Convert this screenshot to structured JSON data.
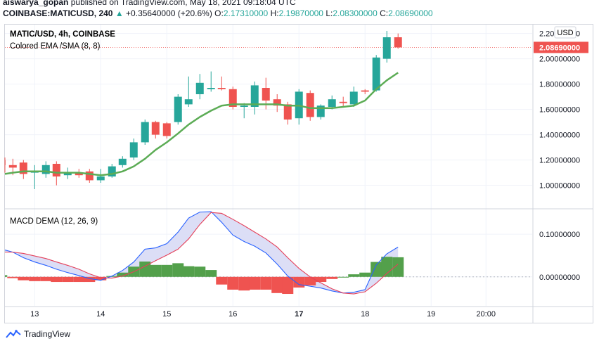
{
  "header": {
    "author": "aiswarya_gopan",
    "published_text": "published on TradingView.com, May 18, 2021 09:18:04 UTC",
    "symbol": "COINBASE:MATICUSD, 240",
    "change_arrow": "▲",
    "change": "+0.35640000 (+20.6%)",
    "open_label": "O:",
    "open": "2.17310000",
    "high_label": "H:",
    "high": "2.19870000",
    "low_label": "L:",
    "low": "2.08300000",
    "close_label": "C:",
    "close": "2.08690000"
  },
  "price_pane": {
    "title": "MATIC/USD, 4h, COINBASE",
    "indicator": "Colored EMA /SMA (8, 8)",
    "currency": "USD",
    "last_price_label": "2.08690000",
    "y_ticks": [
      "2.20000000",
      "2.00000000",
      "1.80000000",
      "1.60000000",
      "1.40000000",
      "1.20000000",
      "1.00000000"
    ]
  },
  "macd_pane": {
    "title": "MACD DEMA (12, 26, 9)",
    "y_ticks": [
      "0.10000000",
      "0.00000000"
    ]
  },
  "x_axis": {
    "ticks": [
      "13",
      "14",
      "15",
      "16",
      "17",
      "18",
      "19",
      "20:00"
    ]
  },
  "footer": {
    "brand": "TradingView"
  },
  "colors": {
    "up": "#26a69a",
    "down": "#ef5350",
    "ema": "#5cac55",
    "macd": "#2962ff",
    "signal": "#e5415a",
    "fill": "#d6d8f5",
    "hist_up": "#53a04b",
    "hist_down": "#ef5350",
    "last_price": "#ef5350"
  },
  "chart_data": [
    {
      "type": "candlestick",
      "title": "MATIC/USD, 4h, COINBASE",
      "interval": "4h",
      "ylim": [
        0.82,
        2.27
      ],
      "x_range_days": [
        12.55,
        20.53
      ],
      "candles": [
        {
          "t": 12.5,
          "o": 1.2,
          "h": 1.22,
          "l": 1.1,
          "c": 1.16
        },
        {
          "t": 12.67,
          "o": 1.16,
          "h": 1.21,
          "l": 1.08,
          "c": 1.14
        },
        {
          "t": 12.83,
          "o": 1.18,
          "h": 1.2,
          "l": 1.05,
          "c": 1.09
        },
        {
          "t": 13.0,
          "o": 1.1,
          "h": 1.16,
          "l": 0.97,
          "c": 1.11
        },
        {
          "t": 13.17,
          "o": 1.09,
          "h": 1.19,
          "l": 1.06,
          "c": 1.16
        },
        {
          "t": 13.33,
          "o": 1.17,
          "h": 1.19,
          "l": 1.0,
          "c": 1.07
        },
        {
          "t": 13.5,
          "o": 1.08,
          "h": 1.14,
          "l": 1.05,
          "c": 1.1
        },
        {
          "t": 13.67,
          "o": 1.1,
          "h": 1.13,
          "l": 1.06,
          "c": 1.08
        },
        {
          "t": 13.83,
          "o": 1.11,
          "h": 1.13,
          "l": 1.02,
          "c": 1.04
        },
        {
          "t": 14.0,
          "o": 1.04,
          "h": 1.13,
          "l": 1.02,
          "c": 1.07
        },
        {
          "t": 14.17,
          "o": 1.07,
          "h": 1.17,
          "l": 1.06,
          "c": 1.15
        },
        {
          "t": 14.33,
          "o": 1.16,
          "h": 1.23,
          "l": 1.14,
          "c": 1.21
        },
        {
          "t": 14.5,
          "o": 1.22,
          "h": 1.37,
          "l": 1.2,
          "c": 1.34
        },
        {
          "t": 14.67,
          "o": 1.34,
          "h": 1.52,
          "l": 1.32,
          "c": 1.5
        },
        {
          "t": 14.83,
          "o": 1.5,
          "h": 1.51,
          "l": 1.37,
          "c": 1.4
        },
        {
          "t": 15.0,
          "o": 1.49,
          "h": 1.5,
          "l": 1.37,
          "c": 1.39
        },
        {
          "t": 15.17,
          "o": 1.5,
          "h": 1.72,
          "l": 1.48,
          "c": 1.7
        },
        {
          "t": 15.33,
          "o": 1.64,
          "h": 1.86,
          "l": 1.62,
          "c": 1.68
        },
        {
          "t": 15.5,
          "o": 1.72,
          "h": 1.88,
          "l": 1.68,
          "c": 1.81
        },
        {
          "t": 15.67,
          "o": 1.76,
          "h": 1.9,
          "l": 1.74,
          "c": 1.77
        },
        {
          "t": 15.83,
          "o": 1.77,
          "h": 1.86,
          "l": 1.75,
          "c": 1.76
        },
        {
          "t": 16.0,
          "o": 1.76,
          "h": 1.78,
          "l": 1.6,
          "c": 1.62
        },
        {
          "t": 16.17,
          "o": 1.62,
          "h": 1.65,
          "l": 1.53,
          "c": 1.63
        },
        {
          "t": 16.33,
          "o": 1.62,
          "h": 1.82,
          "l": 1.56,
          "c": 1.79
        },
        {
          "t": 16.5,
          "o": 1.77,
          "h": 1.85,
          "l": 1.6,
          "c": 1.67
        },
        {
          "t": 16.67,
          "o": 1.68,
          "h": 1.72,
          "l": 1.58,
          "c": 1.63
        },
        {
          "t": 16.83,
          "o": 1.64,
          "h": 1.66,
          "l": 1.48,
          "c": 1.52
        },
        {
          "t": 17.0,
          "o": 1.53,
          "h": 1.76,
          "l": 1.48,
          "c": 1.74
        },
        {
          "t": 17.17,
          "o": 1.73,
          "h": 1.75,
          "l": 1.51,
          "c": 1.54
        },
        {
          "t": 17.33,
          "o": 1.54,
          "h": 1.64,
          "l": 1.52,
          "c": 1.63
        },
        {
          "t": 17.5,
          "o": 1.62,
          "h": 1.71,
          "l": 1.6,
          "c": 1.68
        },
        {
          "t": 17.67,
          "o": 1.66,
          "h": 1.7,
          "l": 1.62,
          "c": 1.65
        },
        {
          "t": 17.83,
          "o": 1.64,
          "h": 1.78,
          "l": 1.62,
          "c": 1.74
        },
        {
          "t": 18.0,
          "o": 1.75,
          "h": 1.76,
          "l": 1.72,
          "c": 1.74
        },
        {
          "t": 18.17,
          "o": 1.75,
          "h": 2.03,
          "l": 1.74,
          "c": 2.01
        },
        {
          "t": 18.33,
          "o": 2.0,
          "h": 2.22,
          "l": 1.97,
          "c": 2.17
        },
        {
          "t": 18.5,
          "o": 2.17,
          "h": 2.2,
          "l": 2.08,
          "c": 2.09
        }
      ],
      "ema": [
        [
          12.5,
          1.09
        ],
        [
          12.67,
          1.1
        ],
        [
          12.83,
          1.11
        ],
        [
          13.0,
          1.11
        ],
        [
          13.17,
          1.11
        ],
        [
          13.33,
          1.1
        ],
        [
          13.5,
          1.1
        ],
        [
          13.67,
          1.1
        ],
        [
          13.83,
          1.09
        ],
        [
          14.0,
          1.08
        ],
        [
          14.17,
          1.09
        ],
        [
          14.33,
          1.11
        ],
        [
          14.5,
          1.15
        ],
        [
          14.67,
          1.21
        ],
        [
          14.83,
          1.28
        ],
        [
          15.0,
          1.34
        ],
        [
          15.17,
          1.41
        ],
        [
          15.33,
          1.48
        ],
        [
          15.5,
          1.54
        ],
        [
          15.67,
          1.59
        ],
        [
          15.83,
          1.63
        ],
        [
          16.0,
          1.64
        ],
        [
          16.17,
          1.64
        ],
        [
          16.33,
          1.64
        ],
        [
          16.5,
          1.64
        ],
        [
          16.67,
          1.64
        ],
        [
          16.83,
          1.63
        ],
        [
          17.0,
          1.63
        ],
        [
          17.17,
          1.61
        ],
        [
          17.33,
          1.61
        ],
        [
          17.5,
          1.61
        ],
        [
          17.67,
          1.62
        ],
        [
          17.83,
          1.63
        ],
        [
          18.0,
          1.67
        ],
        [
          18.17,
          1.76
        ],
        [
          18.33,
          1.83
        ],
        [
          18.5,
          1.89
        ]
      ]
    },
    {
      "type": "macd",
      "title": "MACD DEMA (12, 26, 9)",
      "ylim": [
        -0.068,
        0.158
      ],
      "macd": [
        [
          12.5,
          0.063
        ],
        [
          12.67,
          0.058
        ],
        [
          12.83,
          0.045
        ],
        [
          13.0,
          0.035
        ],
        [
          13.17,
          0.027
        ],
        [
          13.33,
          0.018
        ],
        [
          13.5,
          0.01
        ],
        [
          13.67,
          0.003
        ],
        [
          13.83,
          -0.004
        ],
        [
          14.0,
          -0.008
        ],
        [
          14.17,
          0.002
        ],
        [
          14.33,
          0.015
        ],
        [
          14.5,
          0.035
        ],
        [
          14.67,
          0.065
        ],
        [
          14.83,
          0.068
        ],
        [
          15.0,
          0.078
        ],
        [
          15.17,
          0.105
        ],
        [
          15.33,
          0.138
        ],
        [
          15.5,
          0.152
        ],
        [
          15.67,
          0.153
        ],
        [
          15.83,
          0.128
        ],
        [
          16.0,
          0.098
        ],
        [
          16.17,
          0.083
        ],
        [
          16.33,
          0.072
        ],
        [
          16.5,
          0.056
        ],
        [
          16.67,
          0.03
        ],
        [
          16.83,
          0.002
        ],
        [
          17.0,
          -0.018
        ],
        [
          17.17,
          -0.022
        ],
        [
          17.33,
          -0.026
        ],
        [
          17.5,
          -0.033
        ],
        [
          17.67,
          -0.038
        ],
        [
          17.83,
          -0.036
        ],
        [
          18.0,
          -0.03
        ],
        [
          18.17,
          0.028
        ],
        [
          18.33,
          0.054
        ],
        [
          18.5,
          0.07
        ]
      ],
      "signal": [
        [
          12.5,
          0.058
        ],
        [
          12.67,
          0.058
        ],
        [
          12.83,
          0.055
        ],
        [
          13.0,
          0.049
        ],
        [
          13.17,
          0.043
        ],
        [
          13.33,
          0.035
        ],
        [
          13.5,
          0.027
        ],
        [
          13.67,
          0.018
        ],
        [
          13.83,
          0.007
        ],
        [
          14.0,
          -0.002
        ],
        [
          14.17,
          -0.003
        ],
        [
          14.33,
          0.002
        ],
        [
          14.5,
          0.012
        ],
        [
          14.67,
          0.025
        ],
        [
          14.83,
          0.038
        ],
        [
          15.0,
          0.051
        ],
        [
          15.17,
          0.065
        ],
        [
          15.33,
          0.089
        ],
        [
          15.5,
          0.123
        ],
        [
          15.67,
          0.151
        ],
        [
          15.83,
          0.149
        ],
        [
          16.0,
          0.135
        ],
        [
          16.17,
          0.12
        ],
        [
          16.33,
          0.105
        ],
        [
          16.5,
          0.089
        ],
        [
          16.67,
          0.07
        ],
        [
          16.83,
          0.045
        ],
        [
          17.0,
          0.02
        ],
        [
          17.17,
          0.0
        ],
        [
          17.33,
          -0.014
        ],
        [
          17.5,
          -0.028
        ],
        [
          17.67,
          -0.038
        ],
        [
          17.83,
          -0.04
        ],
        [
          18.0,
          -0.035
        ],
        [
          18.17,
          -0.015
        ],
        [
          18.33,
          0.008
        ],
        [
          18.5,
          0.03
        ]
      ],
      "histogram": [
        [
          12.5,
          0.004
        ],
        [
          12.67,
          -0.003
        ],
        [
          12.83,
          -0.008
        ],
        [
          13.0,
          -0.01
        ],
        [
          13.17,
          -0.01
        ],
        [
          13.33,
          -0.012
        ],
        [
          13.5,
          -0.012
        ],
        [
          13.67,
          -0.012
        ],
        [
          13.83,
          -0.012
        ],
        [
          14.0,
          -0.008
        ],
        [
          14.17,
          0.002
        ],
        [
          14.33,
          0.01
        ],
        [
          14.5,
          0.024
        ],
        [
          14.67,
          0.036
        ],
        [
          14.83,
          0.028
        ],
        [
          15.0,
          0.028
        ],
        [
          15.17,
          0.032
        ],
        [
          15.33,
          0.025
        ],
        [
          15.5,
          0.024
        ],
        [
          15.67,
          0.016
        ],
        [
          15.83,
          -0.018
        ],
        [
          16.0,
          -0.03
        ],
        [
          16.17,
          -0.032
        ],
        [
          16.33,
          -0.03
        ],
        [
          16.5,
          -0.03
        ],
        [
          16.67,
          -0.038
        ],
        [
          16.83,
          -0.04
        ],
        [
          17.0,
          -0.025
        ],
        [
          17.17,
          -0.02
        ],
        [
          17.33,
          -0.012
        ],
        [
          17.5,
          -0.005
        ],
        [
          17.67,
          0.0
        ],
        [
          17.83,
          0.006
        ],
        [
          18.0,
          0.01
        ],
        [
          18.17,
          0.035
        ],
        [
          18.33,
          0.047
        ],
        [
          18.5,
          0.046
        ]
      ]
    }
  ]
}
